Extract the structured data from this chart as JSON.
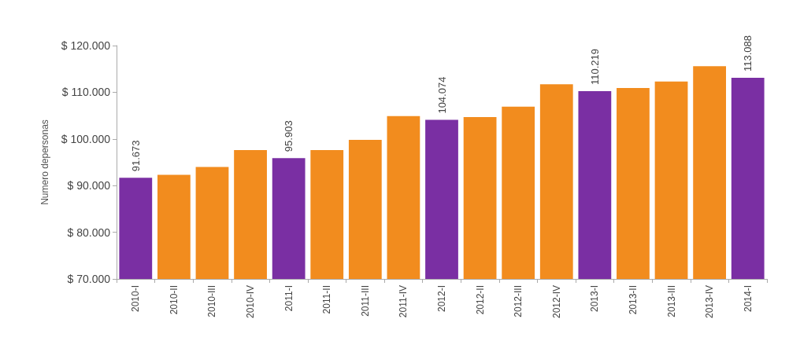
{
  "chart_data": {
    "type": "bar",
    "ylabel": "Numero depersonas",
    "categories": [
      "2010-I",
      "2010-II",
      "2010-III",
      "2010-IV",
      "2011-I",
      "2011-II",
      "2011-III",
      "2011-IV",
      "2012-I",
      "2012-II",
      "2012-III",
      "2012-IV",
      "2013-I",
      "2013-II",
      "2013-III",
      "2013-IV",
      "2014-I"
    ],
    "values": [
      91673,
      92300,
      94000,
      97600,
      95903,
      97600,
      99800,
      104900,
      104074,
      104700,
      106900,
      111700,
      110219,
      110900,
      112300,
      115600,
      113088
    ],
    "colors": [
      "#7a2fa3",
      "#f28c1e",
      "#f28c1e",
      "#f28c1e",
      "#7a2fa3",
      "#f28c1e",
      "#f28c1e",
      "#f28c1e",
      "#7a2fa3",
      "#f28c1e",
      "#f28c1e",
      "#f28c1e",
      "#7a2fa3",
      "#f28c1e",
      "#f28c1e",
      "#f28c1e",
      "#7a2fa3"
    ],
    "value_labels": [
      "91.673",
      null,
      null,
      null,
      "95.903",
      null,
      null,
      null,
      "104.074",
      null,
      null,
      null,
      "110.219",
      null,
      null,
      null,
      "113.088"
    ],
    "ylim": [
      70000,
      120000
    ],
    "yticks": [
      {
        "value": 70000,
        "label": "$ 70.000"
      },
      {
        "value": 80000,
        "label": "$ 80.000"
      },
      {
        "value": 90000,
        "label": "$ 90.000"
      },
      {
        "value": 100000,
        "label": "$ 100.000"
      },
      {
        "value": 110000,
        "label": "$ 110.000"
      },
      {
        "value": 120000,
        "label": "$ 120.000"
      }
    ],
    "grid": false
  }
}
